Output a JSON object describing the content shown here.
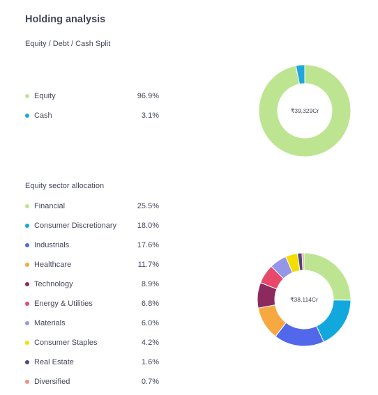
{
  "section_title": "Holding analysis",
  "split": {
    "subtitle": "Equity / Debt / Cash Split",
    "center_label": "₹39,329Cr",
    "items": [
      {
        "label": "Equity",
        "value": "96.9%",
        "pct": 96.9,
        "color": "#bde591"
      },
      {
        "label": "Cash",
        "value": "3.1%",
        "pct": 3.1,
        "color": "#1fa6dc"
      }
    ]
  },
  "sector": {
    "subtitle": "Equity sector allocation",
    "center_label": "₹38,114Cr",
    "items": [
      {
        "label": "Financial",
        "value": "25.5%",
        "pct": 25.5,
        "color": "#bde591"
      },
      {
        "label": "Consumer Discretionary",
        "value": "18.0%",
        "pct": 18.0,
        "color": "#12a8de"
      },
      {
        "label": "Industrials",
        "value": "17.6%",
        "pct": 17.6,
        "color": "#5168ea"
      },
      {
        "label": "Healthcare",
        "value": "11.7%",
        "pct": 11.7,
        "color": "#f8a841"
      },
      {
        "label": "Technology",
        "value": "8.9%",
        "pct": 8.9,
        "color": "#8c2a5e"
      },
      {
        "label": "Energy & Utilities",
        "value": "6.8%",
        "pct": 6.8,
        "color": "#e8486a"
      },
      {
        "label": "Materials",
        "value": "6.0%",
        "pct": 6.0,
        "color": "#9596e7"
      },
      {
        "label": "Consumer Staples",
        "value": "4.2%",
        "pct": 4.2,
        "color": "#f3de00"
      },
      {
        "label": "Real Estate",
        "value": "1.6%",
        "pct": 1.6,
        "color": "#4a4a7a"
      },
      {
        "label": "Diversified",
        "value": "0.7%",
        "pct": 0.7,
        "color": "#f28e84"
      }
    ]
  }
}
